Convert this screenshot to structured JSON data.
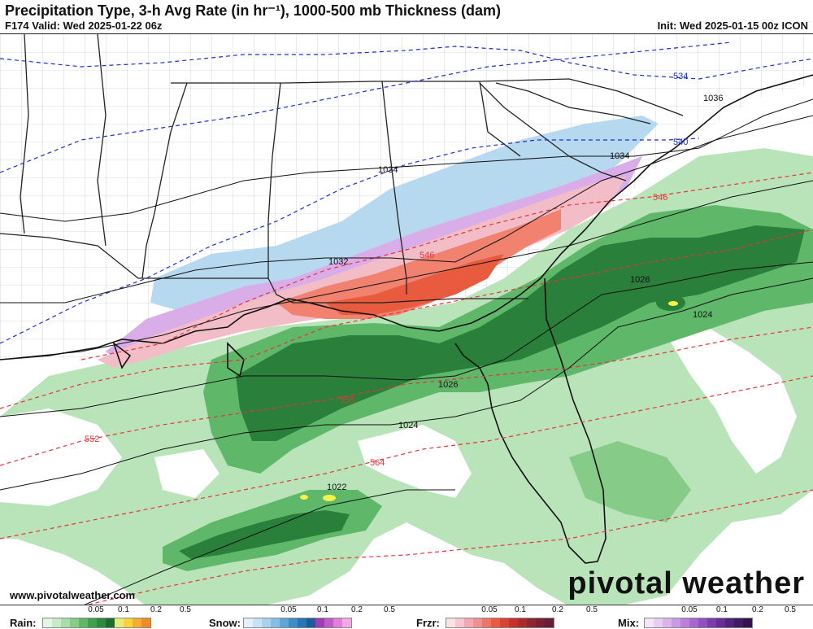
{
  "header": {
    "title": "Precipitation Type, 3-h Avg Rate (in hr⁻¹), 1000-500 mb Thickness (dam)",
    "valid": "F174 Valid: Wed 2025-01-22 06z",
    "init": "Init: Wed 2025-01-15 00z ICON"
  },
  "map": {
    "thickness_labels": [
      "534",
      "540",
      "546",
      "546",
      "552",
      "558",
      "564"
    ],
    "pressure_labels": [
      "1036",
      "1034",
      "1034",
      "1032",
      "1026",
      "1024",
      "1026",
      "1024",
      "1022"
    ],
    "colors": {
      "rain_light": "#b5e3b5",
      "rain_mid": "#5fb86a",
      "rain_dark": "#2a7f3a",
      "snow": "#b7d9ef",
      "frzr_light": "#f3bdc8",
      "frzr_mid": "#f0826f",
      "frzr_dark": "#e85b3f",
      "mix": "#d9aee8",
      "thickness_cold": "#1a2fd0",
      "thickness_warm": "#e8333a",
      "isobar": "#111111",
      "border": "#222222",
      "county": "#b0b0b0"
    }
  },
  "footer": {
    "website": "www.pivotalweather.com",
    "brand": "pivotal weather"
  },
  "legend": [
    {
      "name": "Rain:",
      "ticks": [
        "0.05",
        "0.1",
        "0.2",
        "0.5"
      ],
      "colors": [
        "#e6f6e6",
        "#c8eac8",
        "#a9dca9",
        "#86cc88",
        "#61b866",
        "#3f9f4a",
        "#2b8a3c",
        "#1d6e2e",
        "#e9e97a",
        "#f6d23f",
        "#f6ac2e",
        "#f08a2a"
      ]
    },
    {
      "name": "Snow:",
      "ticks": [
        "0.05",
        "0.1",
        "0.2",
        "0.5"
      ],
      "colors": [
        "#e3f0fa",
        "#c8e2f5",
        "#a9d1ee",
        "#86bde4",
        "#5fa5d8",
        "#3e8dc9",
        "#2874b4",
        "#1d5c9a",
        "#9b3fb3",
        "#c25ac7",
        "#e07fd7",
        "#f2a8e6"
      ]
    },
    {
      "name": "Frzr:",
      "ticks": [
        "0.05",
        "0.1",
        "0.2",
        "0.5"
      ],
      "colors": [
        "#fbe2e6",
        "#f7c7cf",
        "#f3a9b4",
        "#f08e90",
        "#ee7566",
        "#e85b3f",
        "#d94332",
        "#c2332d",
        "#a92a2f",
        "#8f2632",
        "#7a2234",
        "#661e34"
      ]
    },
    {
      "name": "Mix:",
      "ticks": [
        "0.05",
        "0.1",
        "0.2",
        "0.5"
      ],
      "colors": [
        "#f3e6f8",
        "#e7cef2",
        "#d9b4eb",
        "#cb99e3",
        "#bb7fdb",
        "#a866cf",
        "#934fc0",
        "#7d3cab",
        "#682d94",
        "#54227b",
        "#421963",
        "#33124e"
      ]
    }
  ]
}
